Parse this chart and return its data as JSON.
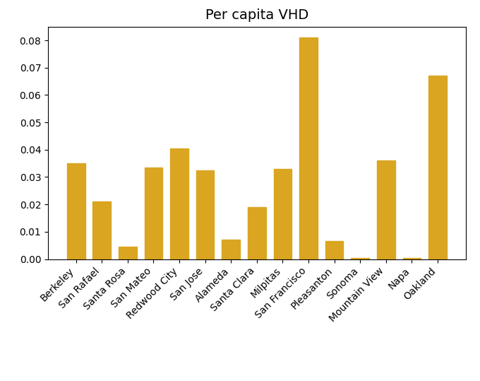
{
  "title": "Per capita VHD",
  "categories": [
    "Berkeley",
    "San Rafael",
    "Santa Rosa",
    "San Mateo",
    "Redwood City",
    "San Jose",
    "Alameda",
    "Santa Clara",
    "Milpitas",
    "San Francisco",
    "Pleasanton",
    "Sonoma",
    "Mountain View",
    "Napa",
    "Oakland"
  ],
  "values": [
    0.035,
    0.021,
    0.0045,
    0.0335,
    0.0405,
    0.0325,
    0.007,
    0.019,
    0.033,
    0.081,
    0.0065,
    0.0005,
    0.036,
    0.0005,
    0.067
  ],
  "bar_color": "#DAA520",
  "ylim": [
    0,
    0.085
  ],
  "title_fontsize": 14,
  "tick_fontsize": 10,
  "figsize": [
    6.8,
    5.39
  ],
  "dpi": 100
}
